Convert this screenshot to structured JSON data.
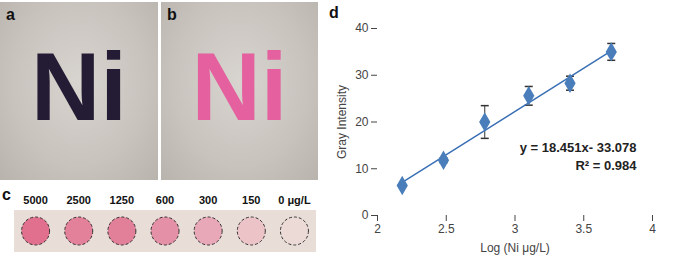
{
  "photos": [
    {
      "letter": "a",
      "text": "Ni",
      "color": "#241c34"
    },
    {
      "letter": "b",
      "text": "Ni",
      "color": "#e4609e"
    }
  ],
  "strip": {
    "letter": "c",
    "concentrations": [
      5000,
      2500,
      1250,
      600,
      300,
      150,
      0
    ],
    "unit": "μg/L",
    "colors": [
      "#e0708e",
      "#e3809a",
      "#e2809a",
      "#e490a6",
      "#e8a8b8",
      "#ecc4c8",
      "#ecdad6"
    ],
    "background": "#e9ddd7"
  },
  "chart_data": {
    "letter": "d",
    "type": "scatter",
    "x": [
      2.18,
      2.48,
      2.78,
      3.1,
      3.4,
      3.7
    ],
    "values": [
      6.4,
      11.8,
      20.0,
      25.6,
      28.3,
      35.0
    ],
    "errors": [
      0.2,
      0.5,
      3.5,
      2.0,
      1.5,
      1.8
    ],
    "color": "#4a7ebb",
    "marker": "diamond",
    "trendline": {
      "x": [
        2.18,
        3.7
      ],
      "values": [
        7.1,
        35.2
      ],
      "color": "#3a6fb5"
    },
    "annotations": [
      "y = 18.451x- 33.078",
      "R² = 0.984"
    ],
    "xlabel": "Log (Ni μg/L)",
    "ylabel": "Gray Intensity",
    "xlim": [
      2,
      4
    ],
    "xticks": [
      2,
      2.5,
      3,
      3.5,
      4
    ],
    "ylim": [
      0,
      40
    ],
    "yticks": [
      0,
      10,
      20,
      30,
      40
    ],
    "grid": false
  }
}
